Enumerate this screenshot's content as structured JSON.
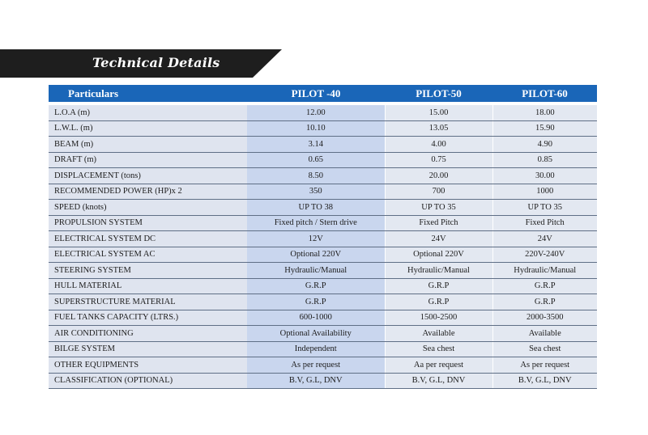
{
  "banner": {
    "title": "Technical Details"
  },
  "table": {
    "headers": [
      "Particulars",
      "PILOT -40",
      "PILOT-50",
      "PILOT-60"
    ],
    "rows": [
      [
        "L.O.A (m)",
        "12.00",
        "15.00",
        "18.00"
      ],
      [
        "L.W.L. (m)",
        "10.10",
        "13.05",
        "15.90"
      ],
      [
        "BEAM (m)",
        "3.14",
        "4.00",
        "4.90"
      ],
      [
        "DRAFT (m)",
        "0.65",
        "0.75",
        "0.85"
      ],
      [
        "DISPLACEMENT (tons)",
        "8.50",
        "20.00",
        "30.00"
      ],
      [
        "RECOMMENDED POWER (HP)x 2",
        "350",
        "700",
        "1000"
      ],
      [
        "SPEED (knots)",
        "UP TO 38",
        "UP TO 35",
        "UP TO 35"
      ],
      [
        "PROPULSION SYSTEM",
        "Fixed pitch / Stern drive",
        "Fixed Pitch",
        "Fixed Pitch"
      ],
      [
        "ELECTRICAL SYSTEM DC",
        "12V",
        "24V",
        "24V"
      ],
      [
        "ELECTRICAL SYSTEM AC",
        "Optional 220V",
        "Optional 220V",
        "220V-240V"
      ],
      [
        "STEERING SYSTEM",
        "Hydraulic/Manual",
        "Hydraulic/Manual",
        "Hydraulic/Manual"
      ],
      [
        "HULL MATERIAL",
        "G.R.P",
        "G.R.P",
        "G.R.P"
      ],
      [
        "SUPERSTRUCTURE MATERIAL",
        "G.R.P",
        "G.R.P",
        "G.R.P"
      ],
      [
        "FUEL TANKS CAPACITY (LTRS.)",
        "600-1000",
        "1500-2500",
        "2000-3500"
      ],
      [
        "AIR CONDITIONING",
        "Optional Availability",
        "Available",
        "Available"
      ],
      [
        "BILGE SYSTEM",
        "Independent",
        "Sea chest",
        "Sea chest"
      ],
      [
        "OTHER EQUIPMENTS",
        "As per request",
        "Aa per request",
        "As per request"
      ],
      [
        "CLASSIFICATION (OPTIONAL)",
        "B.V, G.L, DNV",
        "B.V, G.L, DNV",
        "B.V, G.L, DNV"
      ]
    ]
  }
}
